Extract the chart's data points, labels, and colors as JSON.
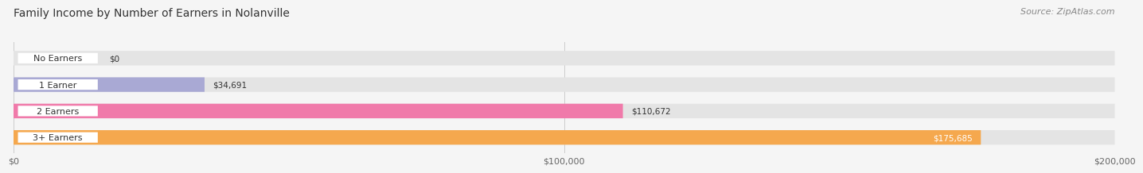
{
  "title": "Family Income by Number of Earners in Nolanville",
  "source": "Source: ZipAtlas.com",
  "categories": [
    "No Earners",
    "1 Earner",
    "2 Earners",
    "3+ Earners"
  ],
  "values": [
    0,
    34691,
    110672,
    175685
  ],
  "bar_colors": [
    "#5ecfcc",
    "#a9a9d4",
    "#f07aaa",
    "#f5a84e"
  ],
  "value_labels": [
    "$0",
    "$34,691",
    "$110,672",
    "$175,685"
  ],
  "xlim": [
    0,
    200000
  ],
  "xticks": [
    0,
    100000,
    200000
  ],
  "xtick_labels": [
    "$0",
    "$100,000",
    "$200,000"
  ],
  "background_color": "#f5f5f5",
  "bar_bg_color": "#e4e4e4",
  "title_fontsize": 10,
  "source_fontsize": 8,
  "bar_height": 0.55,
  "value_label_inside_threshold": 150000
}
